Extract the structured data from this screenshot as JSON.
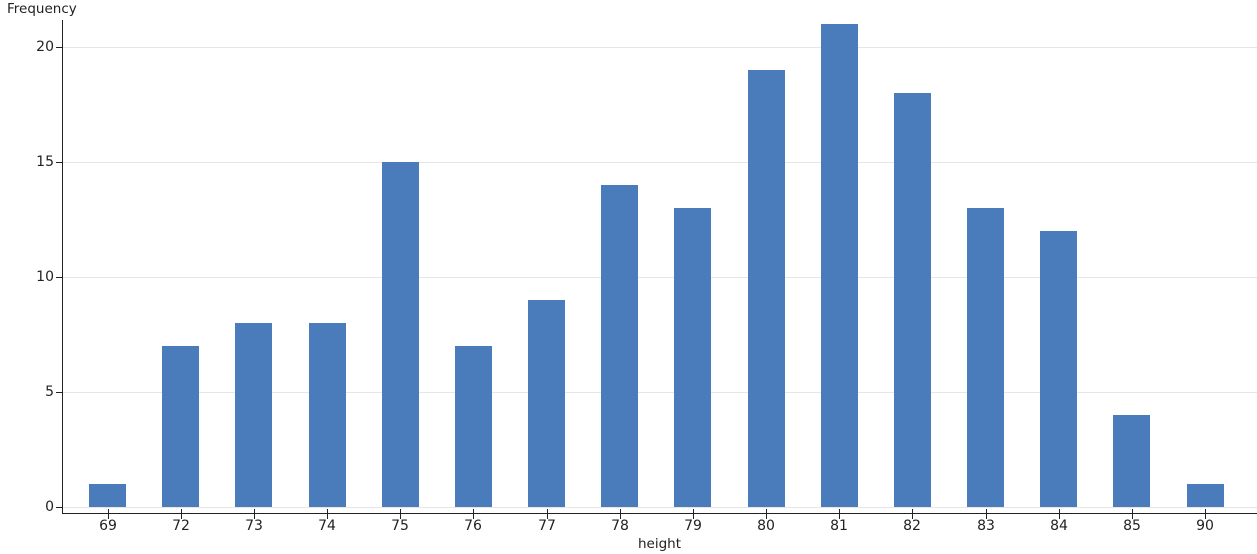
{
  "chart_data": {
    "type": "bar",
    "title": "",
    "xlabel": "height",
    "ylabel": "Frequency",
    "categories": [
      "69",
      "72",
      "73",
      "74",
      "75",
      "76",
      "77",
      "78",
      "79",
      "80",
      "81",
      "82",
      "83",
      "84",
      "85",
      "90"
    ],
    "values": [
      1,
      7,
      8,
      8,
      15,
      7,
      9,
      14,
      13,
      19,
      21,
      18,
      13,
      12,
      4,
      1
    ],
    "yticks": [
      0,
      5,
      10,
      15,
      20
    ],
    "ylim": [
      -0.3,
      21.4
    ],
    "grid": true,
    "legend_position": "none",
    "colors": {
      "bar": "#4a7cbb",
      "axis": "#222222",
      "grid": "#e6e6e6",
      "tick_label": "#222222",
      "background": "#ffffff"
    }
  }
}
